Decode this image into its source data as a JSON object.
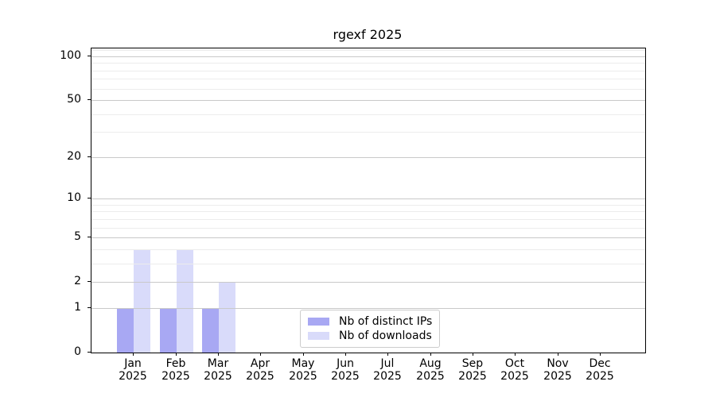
{
  "chart_data": {
    "type": "bar",
    "title": "rgexf 2025",
    "categories": [
      "Jan 2025",
      "Feb 2025",
      "Mar 2025",
      "Apr 2025",
      "May 2025",
      "Jun 2025",
      "Jul 2025",
      "Aug 2025",
      "Sep 2025",
      "Oct 2025",
      "Nov 2025",
      "Dec 2025"
    ],
    "series": [
      {
        "name": "Nb of distinct IPs",
        "color": "#a8a8f3",
        "values": [
          1,
          1,
          1,
          0,
          0,
          0,
          0,
          0,
          0,
          0,
          0,
          0
        ]
      },
      {
        "name": "Nb of downloads",
        "color": "#d9dbfa",
        "values": [
          4,
          4,
          2,
          0,
          0,
          0,
          0,
          0,
          0,
          0,
          0,
          0
        ]
      }
    ],
    "yticks": [
      0,
      1,
      2,
      5,
      10,
      20,
      50,
      100
    ],
    "minor_gridlines": [
      3,
      4,
      6,
      7,
      8,
      9,
      30,
      40,
      60,
      70,
      80,
      90,
      110
    ],
    "scale": "log1p",
    "ylim": [
      0,
      113
    ],
    "xlabel": "",
    "ylabel": "",
    "grid": true,
    "legend_position": "bottom-center",
    "colors": {
      "major_grid": "#c9c9c9",
      "minor_grid": "#ececec",
      "axis": "#000000",
      "legend_border": "#cccccc",
      "background": "#ffffff"
    }
  }
}
